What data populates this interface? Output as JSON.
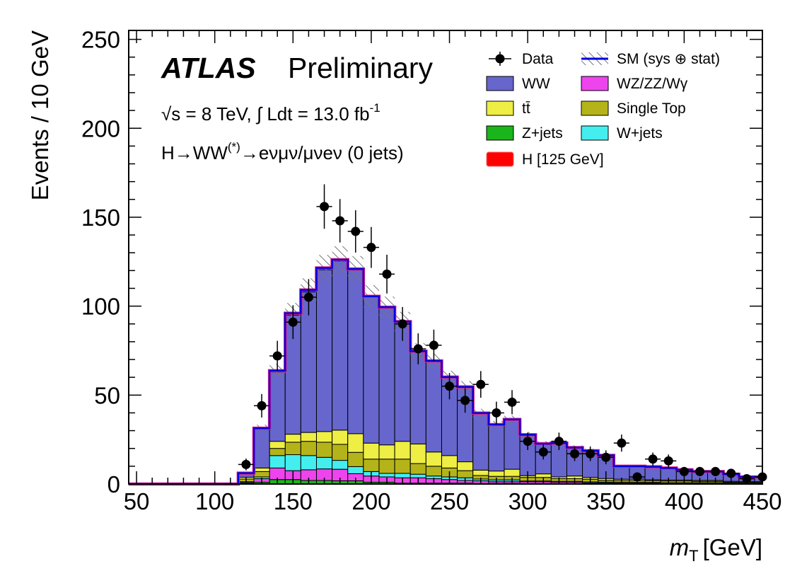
{
  "labels": {
    "atlas": "ATLAS",
    "preliminary": "Preliminary",
    "energy_line": "√s = 8 TeV, ∫ Ldt = 13.0 fb",
    "lumi_exp": "-1",
    "channel_prefix": "H→WW",
    "channel_sup": "(*)",
    "channel_suffix": "→eνμν/μνeν (0 jets)"
  },
  "chart_data": {
    "type": "stacked-histogram",
    "xlabel": "m",
    "xlabel_sub": "T",
    "xlabel_unit": "[GeV]",
    "ylabel": "Events / 10 GeV",
    "xlim": [
      45,
      450
    ],
    "ylim": [
      0,
      255
    ],
    "bin_width": 10,
    "bin_lows": [
      45,
      55,
      65,
      75,
      85,
      95,
      105,
      115,
      125,
      135,
      145,
      155,
      165,
      175,
      185,
      195,
      205,
      215,
      225,
      235,
      245,
      255,
      265,
      275,
      285,
      295,
      305,
      315,
      325,
      335,
      345,
      355,
      365,
      375,
      385,
      395,
      405,
      415,
      425,
      435,
      445
    ],
    "xticks": [
      50,
      100,
      150,
      200,
      250,
      300,
      350,
      400,
      450
    ],
    "xtick_labels": [
      "50",
      "100",
      "150",
      "200",
      "250",
      "300",
      "350",
      "400",
      "450"
    ],
    "yticks": [
      0,
      50,
      100,
      150,
      200,
      250
    ],
    "ytick_labels": [
      "0",
      "50",
      "100",
      "150",
      "200",
      "250"
    ],
    "series": [
      {
        "key": "zjets",
        "name": "Z+jets",
        "color": "#1ab51a",
        "values": [
          0,
          0,
          0,
          0,
          0,
          0,
          0,
          0.3,
          1,
          2.5,
          2.5,
          2,
          2,
          1.8,
          1.8,
          1,
          1,
          0.5,
          0.5,
          0.5,
          0.5,
          0.5,
          0.3,
          0.3,
          0.3,
          0.2,
          0.2,
          0.2,
          0.2,
          0.2,
          0.1,
          0.1,
          0.1,
          0.1,
          0.1,
          0.1,
          0.1,
          0.1,
          0,
          0,
          0
        ]
      },
      {
        "key": "diboson",
        "name": "WZ/ZZ/Wγ",
        "color": "#ee44ee",
        "values": [
          0,
          0,
          0,
          0,
          0,
          0,
          0,
          0.5,
          2,
          6.5,
          5,
          6,
          6.5,
          6.5,
          4,
          3.5,
          3,
          3,
          3,
          2.5,
          2,
          1.5,
          1.5,
          1,
          1,
          1,
          1,
          0.8,
          0.8,
          0.5,
          0.5,
          0.5,
          0.5,
          0.5,
          0.3,
          0.3,
          0.3,
          0.3,
          0.2,
          0.2,
          0.2
        ]
      },
      {
        "key": "wjets",
        "name": "W+jets",
        "color": "#44eeee",
        "values": [
          0,
          0,
          0,
          0,
          0,
          0,
          0,
          0.5,
          1,
          7,
          9,
          8,
          6.5,
          5,
          4,
          2.5,
          2,
          2.5,
          2,
          1.5,
          1.5,
          1.5,
          1,
          1,
          1,
          0.5,
          0.5,
          0.5,
          0.5,
          0.5,
          0.5,
          0.3,
          0.3,
          0.3,
          0.3,
          0.3,
          0.3,
          0.3,
          0.3,
          0.3,
          0.3
        ]
      },
      {
        "key": "singletop",
        "name": "Single Top",
        "color": "#b4b41a",
        "values": [
          0,
          0,
          0,
          0,
          0,
          0,
          0,
          1.5,
          3,
          4,
          7,
          8,
          8.5,
          9,
          8,
          7,
          8,
          8,
          6,
          5.5,
          5,
          4,
          2,
          2,
          2,
          2,
          2,
          1.5,
          1.5,
          1.5,
          1,
          1,
          1,
          1,
          1,
          1,
          0.8,
          0.8,
          0.5,
          0.5,
          0.5
        ]
      },
      {
        "key": "ttbar",
        "name": "tt̄",
        "color": "#eeee44",
        "values": [
          0,
          0,
          0,
          0,
          0,
          0,
          0,
          1,
          2,
          4,
          4.5,
          5,
          6,
          8,
          10.5,
          9,
          8,
          10,
          11,
          8,
          7,
          5,
          3,
          3,
          4,
          1,
          2,
          1,
          1.5,
          1,
          1,
          0.8,
          0.8,
          0.5,
          0.5,
          0.5,
          0.5,
          0.5,
          0.5,
          0.3,
          0.3
        ]
      },
      {
        "key": "ww",
        "name": "WW",
        "color": "#6666cc",
        "values": [
          0,
          0,
          0,
          0,
          0,
          0,
          0,
          2.2,
          22,
          39,
          67,
          79,
          91,
          95,
          92,
          82,
          77,
          67,
          52,
          51,
          44,
          42,
          32,
          26,
          28,
          23,
          17,
          19,
          16,
          15,
          13,
          7.3,
          7.3,
          7.3,
          6.8,
          5.8,
          5,
          5,
          4,
          2.7,
          2.7
        ]
      },
      {
        "key": "higgs",
        "name": "H [125 GeV]",
        "color": "#ff0000",
        "values": [
          0,
          0,
          0,
          0,
          0,
          0,
          0,
          0.1,
          0.4,
          0.7,
          1,
          1.1,
          1,
          0.8,
          0.6,
          0.5,
          0.4,
          0.3,
          0.2,
          0.2,
          0.1,
          0.1,
          0.1,
          0.1,
          0,
          0,
          0,
          0,
          0,
          0,
          0,
          0,
          0,
          0,
          0,
          0,
          0,
          0,
          0,
          0,
          0
        ]
      }
    ],
    "data_points": [
      {
        "x": 120,
        "y": 11,
        "err": 3.3
      },
      {
        "x": 130,
        "y": 44,
        "err": 6.6
      },
      {
        "x": 140,
        "y": 72,
        "err": 8.5
      },
      {
        "x": 150,
        "y": 91,
        "err": 9.5
      },
      {
        "x": 160,
        "y": 105,
        "err": 10.2
      },
      {
        "x": 170,
        "y": 156,
        "err": 12.5
      },
      {
        "x": 180,
        "y": 148,
        "err": 12.2
      },
      {
        "x": 190,
        "y": 142,
        "err": 11.9
      },
      {
        "x": 200,
        "y": 133,
        "err": 11.5
      },
      {
        "x": 210,
        "y": 118,
        "err": 10.9
      },
      {
        "x": 220,
        "y": 90,
        "err": 9.5
      },
      {
        "x": 230,
        "y": 76,
        "err": 8.7
      },
      {
        "x": 240,
        "y": 78,
        "err": 8.8
      },
      {
        "x": 250,
        "y": 55,
        "err": 7.4
      },
      {
        "x": 260,
        "y": 47,
        "err": 6.9
      },
      {
        "x": 270,
        "y": 56,
        "err": 7.5
      },
      {
        "x": 280,
        "y": 40,
        "err": 6.3
      },
      {
        "x": 290,
        "y": 46,
        "err": 6.8
      },
      {
        "x": 300,
        "y": 24,
        "err": 4.9
      },
      {
        "x": 310,
        "y": 18,
        "err": 4.2
      },
      {
        "x": 320,
        "y": 24,
        "err": 4.9
      },
      {
        "x": 330,
        "y": 17,
        "err": 4.1
      },
      {
        "x": 340,
        "y": 17,
        "err": 4.1
      },
      {
        "x": 350,
        "y": 15,
        "err": 3.9
      },
      {
        "x": 360,
        "y": 23,
        "err": 4.8
      },
      {
        "x": 370,
        "y": 4,
        "err": 2
      },
      {
        "x": 380,
        "y": 14,
        "err": 3.7
      },
      {
        "x": 390,
        "y": 13,
        "err": 3.6
      },
      {
        "x": 400,
        "y": 7,
        "err": 2.6
      },
      {
        "x": 410,
        "y": 7,
        "err": 2.6
      },
      {
        "x": 420,
        "y": 7,
        "err": 2.6
      },
      {
        "x": 430,
        "y": 6,
        "err": 2.4
      },
      {
        "x": 440,
        "y": 3,
        "err": 1.7
      },
      {
        "x": 450,
        "y": 4,
        "err": 2
      }
    ],
    "sm_uncertainty_fraction": 0.06,
    "legend": {
      "position": "top-right",
      "entries": [
        {
          "key": "data",
          "label": "Data",
          "type": "marker"
        },
        {
          "key": "sm",
          "label": "SM (sys ⊕ stat)",
          "type": "line-hatch",
          "color": "#0000dd"
        },
        {
          "key": "ww",
          "label": "WW",
          "type": "fill",
          "color": "#6666cc"
        },
        {
          "key": "diboson",
          "label": "WZ/ZZ/Wγ",
          "type": "fill",
          "color": "#ee44ee"
        },
        {
          "key": "ttbar",
          "label": "tt̄",
          "type": "fill",
          "color": "#eeee44"
        },
        {
          "key": "singletop",
          "label": "Single Top",
          "type": "fill",
          "color": "#b4b41a"
        },
        {
          "key": "zjets",
          "label": "Z+jets",
          "type": "fill",
          "color": "#1ab51a"
        },
        {
          "key": "wjets",
          "label": "W+jets",
          "type": "fill",
          "color": "#44eeee"
        },
        {
          "key": "higgs",
          "label": "H [125 GeV]",
          "type": "fill",
          "color": "#ff0000"
        }
      ]
    }
  }
}
